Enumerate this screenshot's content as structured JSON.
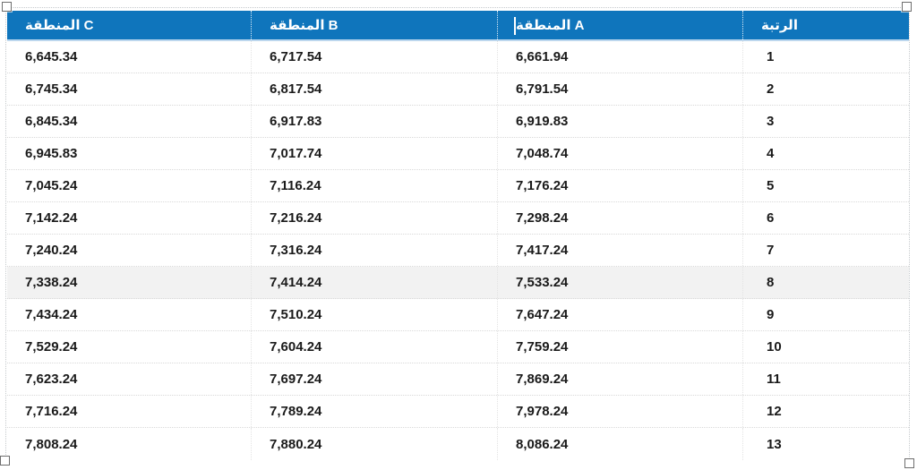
{
  "table": {
    "columns": [
      {
        "id": "region_c",
        "label": "المنطقة C"
      },
      {
        "id": "region_b",
        "label": "المنطقة B"
      },
      {
        "id": "region_a",
        "label": "المنطقة A"
      },
      {
        "id": "rank",
        "label": "الرتبة"
      }
    ],
    "rows": [
      {
        "rank": "1",
        "region_a": "6,661.94",
        "region_b": "6,717.54",
        "region_c": "6,645.34"
      },
      {
        "rank": "2",
        "region_a": "6,791.54",
        "region_b": "6,817.54",
        "region_c": "6,745.34"
      },
      {
        "rank": "3",
        "region_a": "6,919.83",
        "region_b": "6,917.83",
        "region_c": "6,845.34"
      },
      {
        "rank": "4",
        "region_a": "7,048.74",
        "region_b": "7,017.74",
        "region_c": "6,945.83"
      },
      {
        "rank": "5",
        "region_a": "7,176.24",
        "region_b": "7,116.24",
        "region_c": "7,045.24"
      },
      {
        "rank": "6",
        "region_a": "7,298.24",
        "region_b": "7,216.24",
        "region_c": "7,142.24"
      },
      {
        "rank": "7",
        "region_a": "7,417.24",
        "region_b": "7,316.24",
        "region_c": "7,240.24"
      },
      {
        "rank": "8",
        "region_a": "7,533.24",
        "region_b": "7,414.24",
        "region_c": "7,338.24"
      },
      {
        "rank": "9",
        "region_a": "7,647.24",
        "region_b": "7,510.24",
        "region_c": "7,434.24"
      },
      {
        "rank": "10",
        "region_a": "7,759.24",
        "region_b": "7,604.24",
        "region_c": "7,529.24"
      },
      {
        "rank": "11",
        "region_a": "7,869.24",
        "region_b": "7,697.24",
        "region_c": "7,623.24"
      },
      {
        "rank": "12",
        "region_a": "7,978.24",
        "region_b": "7,789.24",
        "region_c": "7,716.24"
      },
      {
        "rank": "13",
        "region_a": "8,086.24",
        "region_b": "7,880.24",
        "region_c": "7,808.24"
      }
    ],
    "highlighted_row_rank": "8"
  },
  "colors": {
    "header_bg": "#0F75BC",
    "header_text": "#FFFFFF",
    "header_accent_border": "#BDD7EE",
    "body_text": "#1A1A1A",
    "row_highlight": "#F2F2F2"
  },
  "selection": {
    "editing_cell": "المنطقة A",
    "handles": [
      "top-left",
      "top-right",
      "bottom-left",
      "bottom-right"
    ]
  }
}
